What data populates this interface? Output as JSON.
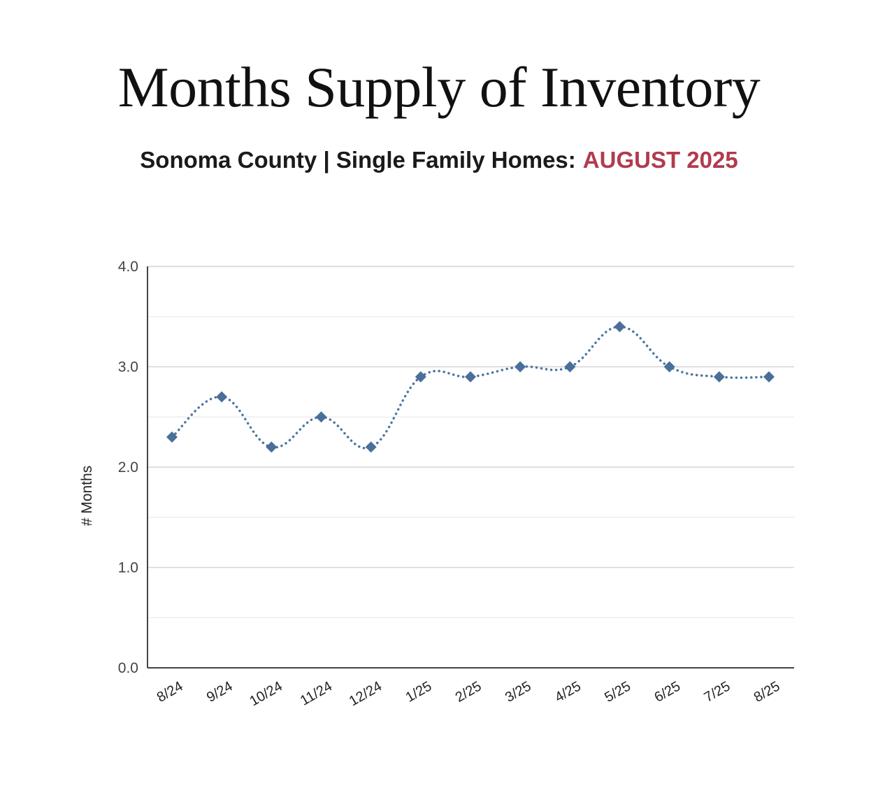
{
  "header": {
    "title": "Months Supply of Inventory",
    "subtitle_main": "Sonoma County | Single Family Homes:",
    "subtitle_highlight": "AUGUST 2025"
  },
  "colors": {
    "line": "#4a76a0",
    "marker": "#4a6f99",
    "highlight": "#b23b4e",
    "grid": "#dddddd",
    "axis": "#444444"
  },
  "chart_data": {
    "type": "line",
    "title": "Months Supply of Inventory",
    "subtitle": "Sonoma County | Single Family Homes: AUGUST 2025",
    "xlabel": "",
    "ylabel": "# Months",
    "categories": [
      "8/24",
      "9/24",
      "10/24",
      "11/24",
      "12/24",
      "1/25",
      "2/25",
      "3/25",
      "4/25",
      "5/25",
      "6/25",
      "7/25",
      "8/25"
    ],
    "series": [
      {
        "values": [
          2.3,
          2.7,
          2.2,
          2.5,
          2.2,
          2.9,
          2.9,
          3.0,
          3.0,
          3.4,
          3.0,
          2.9,
          2.9
        ]
      }
    ],
    "ylim": [
      0,
      4
    ],
    "yticks": [
      "0.0",
      "1.0",
      "2.0",
      "3.0",
      "4.0"
    ],
    "grid": true,
    "line_style": "dotted",
    "marker": "diamond",
    "legend": "none"
  }
}
